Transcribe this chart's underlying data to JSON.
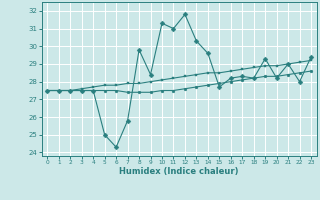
{
  "title": "",
  "xlabel": "Humidex (Indice chaleur)",
  "ylabel": "",
  "xlim": [
    -0.5,
    23.5
  ],
  "ylim": [
    23.8,
    32.5
  ],
  "yticks": [
    24,
    25,
    26,
    27,
    28,
    29,
    30,
    31,
    32
  ],
  "xticks": [
    0,
    1,
    2,
    3,
    4,
    5,
    6,
    7,
    8,
    9,
    10,
    11,
    12,
    13,
    14,
    15,
    16,
    17,
    18,
    19,
    20,
    21,
    22,
    23
  ],
  "bg_color": "#cce8e8",
  "grid_color": "#ffffff",
  "line_color": "#2a7f7f",
  "series": [
    [
      27.5,
      27.5,
      27.5,
      27.5,
      27.5,
      25.0,
      24.3,
      25.8,
      29.8,
      28.4,
      31.3,
      31.0,
      31.8,
      30.3,
      29.6,
      27.7,
      28.2,
      28.3,
      28.2,
      29.3,
      28.2,
      29.0,
      28.0,
      29.4
    ],
    [
      27.5,
      27.5,
      27.5,
      27.6,
      27.7,
      27.8,
      27.8,
      27.9,
      27.9,
      28.0,
      28.1,
      28.2,
      28.3,
      28.4,
      28.5,
      28.5,
      28.6,
      28.7,
      28.8,
      28.9,
      28.9,
      29.0,
      29.1,
      29.2
    ],
    [
      27.5,
      27.5,
      27.5,
      27.5,
      27.5,
      27.5,
      27.5,
      27.4,
      27.4,
      27.4,
      27.5,
      27.5,
      27.6,
      27.7,
      27.8,
      27.9,
      28.0,
      28.1,
      28.2,
      28.3,
      28.3,
      28.4,
      28.5,
      28.6
    ]
  ],
  "markers": [
    "D",
    "s",
    "o"
  ],
  "markersizes": [
    2.5,
    2.0,
    2.0
  ],
  "linewidths": [
    0.8,
    0.8,
    0.8
  ]
}
